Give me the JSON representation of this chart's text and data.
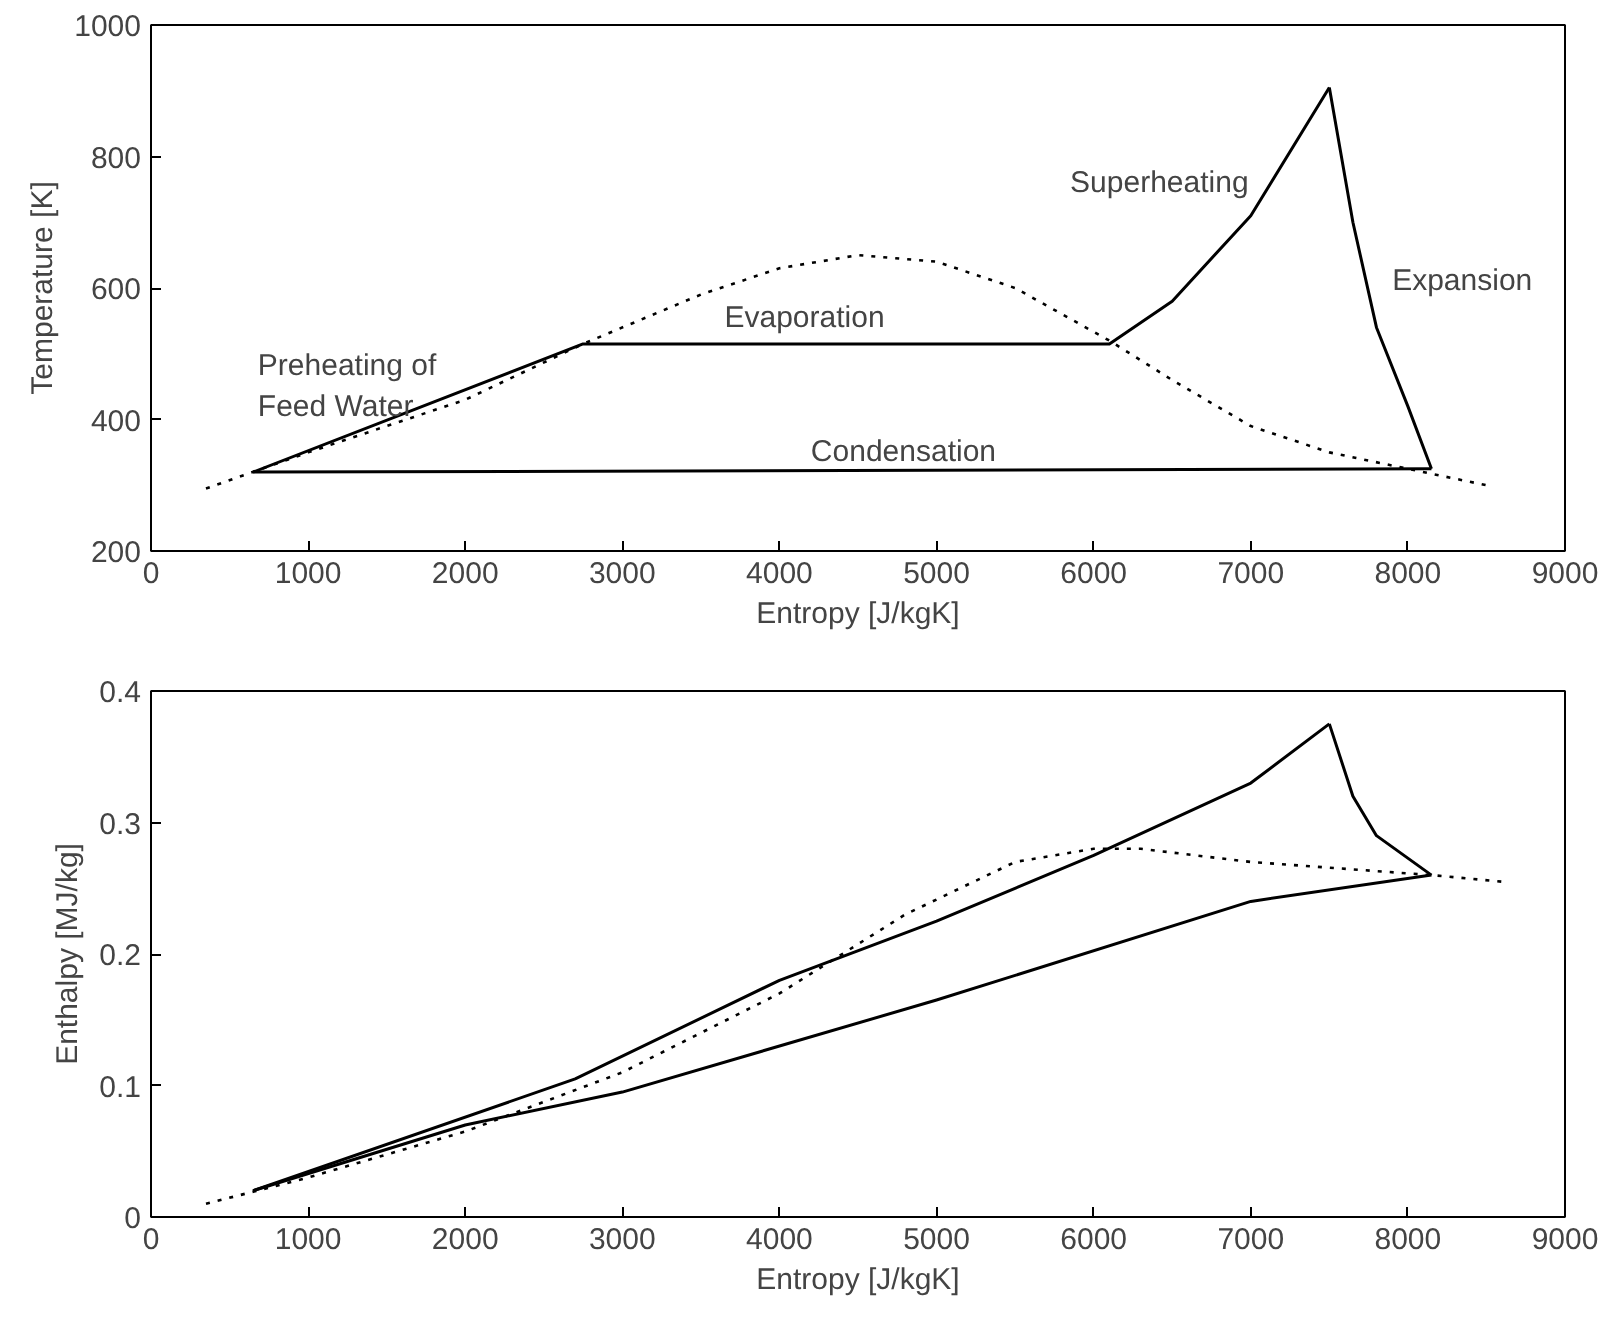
{
  "chart_data": [
    {
      "type": "line",
      "xlabel": "Entropy [J/kgK]",
      "ylabel": "Temperature [K]",
      "xlim": [
        0,
        9000
      ],
      "ylim": [
        200,
        1000
      ],
      "xticks": [
        0,
        1000,
        2000,
        3000,
        4000,
        5000,
        6000,
        7000,
        8000,
        9000
      ],
      "yticks": [
        200,
        400,
        600,
        800,
        1000
      ],
      "grid": false,
      "series": [
        {
          "color": "#000000",
          "line_style": "dotted",
          "x": [
            350,
            1000,
            2000,
            2750,
            3500,
            4000,
            4500,
            5000,
            5500,
            6100,
            6500,
            7000,
            7500,
            8000,
            8500
          ],
          "values": [
            295,
            350,
            430,
            515,
            590,
            630,
            650,
            640,
            600,
            520,
            460,
            390,
            350,
            325,
            300
          ]
        },
        {
          "color": "#000000",
          "line_style": "solid",
          "x": [
            650,
            2750,
            6100,
            6500,
            7000,
            7500
          ],
          "values": [
            320,
            515,
            515,
            580,
            710,
            905
          ]
        },
        {
          "color": "#000000",
          "line_style": "solid",
          "x": [
            7500,
            7650,
            7800,
            8000,
            8150
          ],
          "values": [
            905,
            700,
            540,
            420,
            325
          ]
        },
        {
          "color": "#000000",
          "line_style": "solid",
          "x": [
            650,
            8150
          ],
          "values": [
            320,
            325
          ]
        }
      ],
      "annotations": [
        "Preheating of\nFeed Water",
        "Evaporation",
        "Superheating",
        "Expansion",
        "Condensation"
      ]
    },
    {
      "type": "line",
      "xlabel": "Entropy [J/kgK]",
      "ylabel": "Enthalpy [MJ/kg]",
      "xlim": [
        0,
        9000
      ],
      "ylim": [
        0,
        0.4
      ],
      "xticks": [
        0,
        1000,
        2000,
        3000,
        4000,
        5000,
        6000,
        7000,
        8000,
        9000
      ],
      "yticks": [
        0,
        0.1,
        0.2,
        0.3,
        0.4
      ],
      "grid": false,
      "series": [
        {
          "color": "#000000",
          "line_style": "dotted",
          "x": [
            350,
            1000,
            2000,
            3000,
            4000,
            4800,
            5500,
            6000,
            6300,
            7000,
            8150,
            8600
          ],
          "values": [
            0.01,
            0.03,
            0.065,
            0.11,
            0.17,
            0.23,
            0.27,
            0.28,
            0.28,
            0.27,
            0.26,
            0.255
          ]
        },
        {
          "color": "#000000",
          "line_style": "solid",
          "x": [
            650,
            2700,
            4000,
            5000,
            6000,
            7000,
            7500
          ],
          "values": [
            0.02,
            0.105,
            0.18,
            0.225,
            0.275,
            0.33,
            0.375
          ]
        },
        {
          "color": "#000000",
          "line_style": "solid",
          "x": [
            7500,
            7650,
            7800,
            8150
          ],
          "values": [
            0.375,
            0.32,
            0.29,
            0.26
          ]
        },
        {
          "color": "#000000",
          "line_style": "solid",
          "x": [
            650,
            2000,
            3000,
            5000,
            7000,
            8150
          ],
          "values": [
            0.02,
            0.07,
            0.095,
            0.165,
            0.24,
            0.26
          ]
        }
      ]
    }
  ]
}
